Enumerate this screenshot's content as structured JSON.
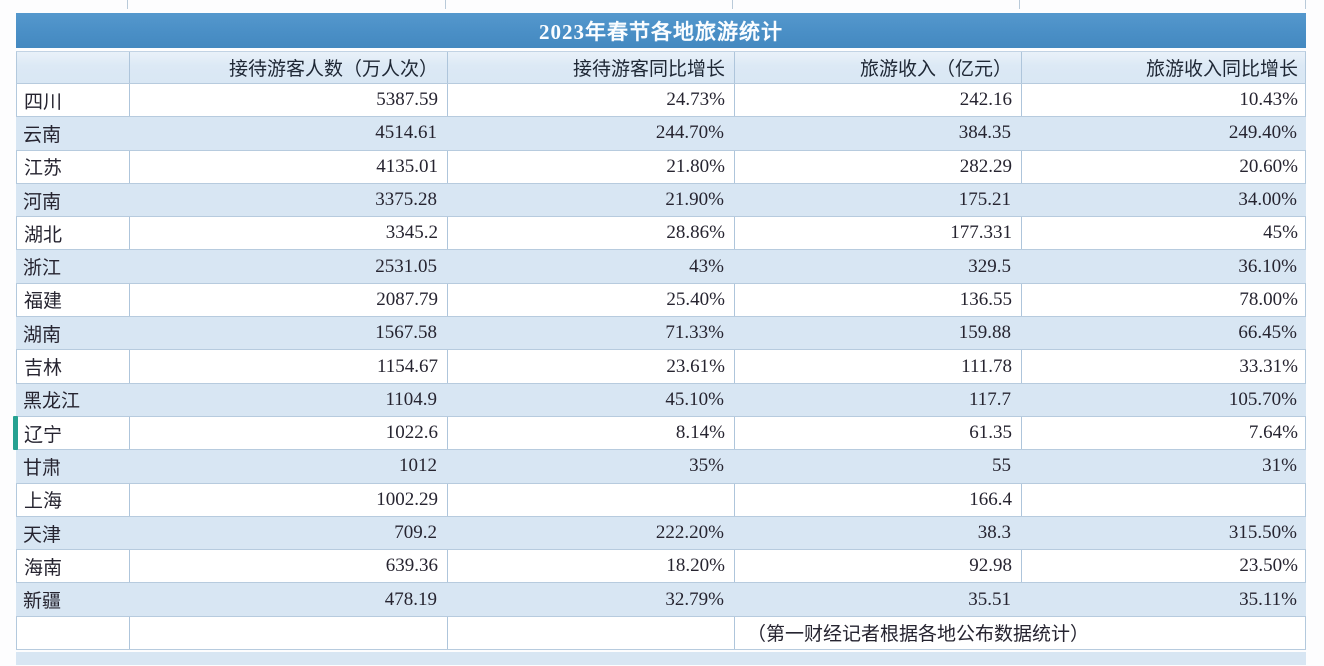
{
  "chart_data": {
    "type": "table",
    "title": "2023年春节各地旅游统计",
    "columns": [
      "",
      "接待游客人数（万人次）",
      "接待游客同比增长",
      "旅游收入（亿元）",
      "旅游收入同比增长"
    ],
    "rows": [
      [
        "四川",
        "5387.59",
        "24.73%",
        "242.16",
        "10.43%"
      ],
      [
        "云南",
        "4514.61",
        "244.70%",
        "384.35",
        "249.40%"
      ],
      [
        "江苏",
        "4135.01",
        "21.80%",
        "282.29",
        "20.60%"
      ],
      [
        "河南",
        "3375.28",
        "21.90%",
        "175.21",
        "34.00%"
      ],
      [
        "湖北",
        "3345.2",
        "28.86%",
        "177.331",
        "45%"
      ],
      [
        "浙江",
        "2531.05",
        "43%",
        "329.5",
        "36.10%"
      ],
      [
        "福建",
        "2087.79",
        "25.40%",
        "136.55",
        "78.00%"
      ],
      [
        "湖南",
        "1567.58",
        "71.33%",
        "159.88",
        "66.45%"
      ],
      [
        "吉林",
        "1154.67",
        "23.61%",
        "111.78",
        "33.31%"
      ],
      [
        "黑龙江",
        "1104.9",
        "45.10%",
        "117.7",
        "105.70%"
      ],
      [
        "辽宁",
        "1022.6",
        "8.14%",
        "61.35",
        "7.64%"
      ],
      [
        "甘肃",
        "1012",
        "35%",
        "55",
        "31%"
      ],
      [
        "上海",
        "1002.29",
        "",
        "166.4",
        ""
      ],
      [
        "天津",
        "709.2",
        "222.20%",
        "38.3",
        "315.50%"
      ],
      [
        "海南",
        "639.36",
        "18.20%",
        "92.98",
        "23.50%"
      ],
      [
        "新疆",
        "478.19",
        "32.79%",
        "35.51",
        "35.11%"
      ]
    ],
    "footer": "（第一财经记者根据各地公布数据统计）",
    "legend_position": "none",
    "grid": true
  },
  "selection": {
    "region": "辽宁"
  },
  "colors": {
    "title_bar": "#4a8fc6",
    "band_row": "#d8e6f3",
    "header_row": "#dce9f5",
    "gridline": "#aec5db",
    "selection_marker": "#26a191",
    "title_text": "#fbfdff",
    "body_text": "#262430"
  }
}
